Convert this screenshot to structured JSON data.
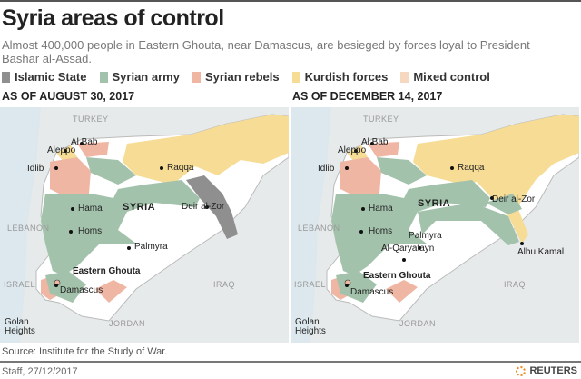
{
  "title": "Syria areas of control",
  "subtitle": "Almost 400,000 people in Eastern Ghouta, near Damascus, are besieged by forces loyal to President Bashar al-Assad.",
  "legend": [
    {
      "label": "Islamic State",
      "color": "#8f8f8f"
    },
    {
      "label": "Syrian army",
      "color": "#a3c2ab"
    },
    {
      "label": "Syrian rebels",
      "color": "#f0b6a4"
    },
    {
      "label": "Kurdish forces",
      "color": "#f7dc96"
    },
    {
      "label": "Mixed control",
      "color": "#f6d7c0"
    }
  ],
  "maps": [
    {
      "title": "AS OF AUGUST 30, 2017",
      "labels": {
        "turkey": "TURKEY",
        "syria": "SYRIA",
        "lebanon": "LEBANON",
        "israel": "ISRAEL",
        "iraq": "IRAQ",
        "jordan": "JORDAN",
        "al_bab": "Al Bab",
        "aleppo": "Aleppo",
        "idlib": "Idlib",
        "raqqa": "Raqqa",
        "hama": "Hama",
        "homs": "Homs",
        "deir": "Deir al-Zor",
        "palmyra": "Palmyra",
        "ghouta": "Eastern Ghouta",
        "damascus": "Damascus",
        "golan": "Golan\nHeights"
      }
    },
    {
      "title": "AS OF DECEMBER 14, 2017",
      "labels": {
        "turkey": "TURKEY",
        "syria": "SYRIA",
        "lebanon": "LEBANON",
        "israel": "ISRAEL",
        "iraq": "IRAQ",
        "jordan": "JORDAN",
        "al_bab": "Al Bab",
        "aleppo": "Aleppo",
        "idlib": "Idlib",
        "raqqa": "Raqqa",
        "hama": "Hama",
        "homs": "Homs",
        "deir": "Deir al-Zor",
        "palmyra": "Palmyra",
        "qaryatayn": "Al-Qaryatayn",
        "albu": "Albu Kamal",
        "ghouta": "Eastern Ghouta",
        "damascus": "Damascus",
        "golan": "Golan\nHeights"
      }
    }
  ],
  "source": "Source: Institute for the Study of War.",
  "credit": "Staff, 27/12/2017",
  "brand": "REUTERS"
}
